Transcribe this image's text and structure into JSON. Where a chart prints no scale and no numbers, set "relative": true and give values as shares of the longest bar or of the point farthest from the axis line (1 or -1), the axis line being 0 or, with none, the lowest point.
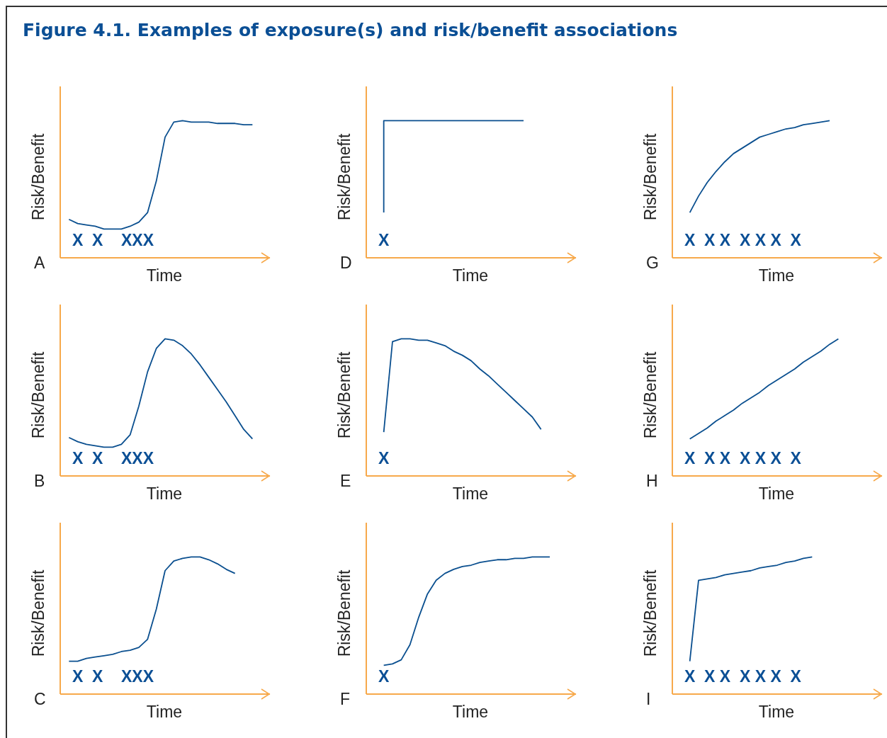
{
  "chart_data": [
    {
      "type": "other",
      "title": "Figure 4.1. Examples of exposure(s) and risk/benefit associations"
    },
    {
      "type": "line",
      "xlabel": "Time",
      "ylabel": "Risk/Benefit",
      "relative": true,
      "marker": "none",
      "annotations": [
        "A",
        "X  X    XXX"
      ],
      "categories": [
        null,
        null,
        null,
        null,
        null,
        null,
        null,
        null,
        null,
        null,
        null,
        null,
        null,
        null,
        null,
        null,
        null,
        null,
        null,
        null,
        null,
        null,
        null,
        null,
        null
      ],
      "series": [
        {
          "color": "#0a4f8f",
          "values": [
            null,
            0.28,
            0.25,
            0.24,
            0.23,
            0.21,
            0.21,
            0.21,
            0.23,
            0.26,
            0.33,
            0.56,
            0.88,
            0.99,
            1,
            0.99,
            0.99,
            0.99,
            0.98,
            0.98,
            0.98,
            0.97,
            0.97,
            null,
            null
          ]
        }
      ]
    },
    {
      "type": "line",
      "xlabel": "Time",
      "ylabel": "Risk/Benefit",
      "relative": true,
      "marker": "none",
      "annotations": [
        "D",
        "X"
      ],
      "categories": [
        null,
        null,
        null,
        null,
        null,
        null,
        null,
        null,
        null,
        null,
        null,
        null,
        null,
        null,
        null,
        null,
        null,
        null,
        null,
        null,
        null,
        null,
        null,
        null,
        null
      ],
      "series": [
        {
          "type": "step",
          "color": "#0a4f8f",
          "values": [
            null,
            null,
            0.33,
            1,
            1,
            1,
            1,
            1,
            1,
            1,
            1,
            1,
            1,
            1,
            1,
            1,
            1,
            1,
            1,
            null,
            null,
            null,
            null,
            null,
            null
          ]
        }
      ]
    },
    {
      "type": "line",
      "xlabel": "Time",
      "ylabel": "Risk/Benefit",
      "relative": true,
      "marker": "none",
      "annotations": [
        "G",
        "X  X X  X X X  X"
      ],
      "categories": [
        null,
        null,
        null,
        null,
        null,
        null,
        null,
        null,
        null,
        null,
        null,
        null,
        null,
        null,
        null,
        null,
        null,
        null,
        null,
        null,
        null,
        null,
        null,
        null,
        null
      ],
      "series": [
        {
          "color": "#0a4f8f",
          "values": [
            null,
            null,
            0.33,
            0.45,
            0.55,
            0.63,
            0.7,
            0.76,
            0.8,
            0.84,
            0.88,
            0.9,
            0.92,
            0.94,
            0.95,
            0.97,
            0.98,
            0.99,
            1,
            null,
            null,
            null,
            null,
            null,
            null
          ]
        }
      ]
    },
    {
      "type": "line",
      "xlabel": "Time",
      "ylabel": "Risk/Benefit",
      "relative": true,
      "marker": "none",
      "annotations": [
        "B",
        "X  X    XXX"
      ],
      "categories": [
        null,
        null,
        null,
        null,
        null,
        null,
        null,
        null,
        null,
        null,
        null,
        null,
        null,
        null,
        null,
        null,
        null,
        null,
        null,
        null,
        null,
        null,
        null,
        null,
        null
      ],
      "series": [
        {
          "color": "#0a4f8f",
          "values": [
            null,
            0.28,
            0.25,
            0.23,
            0.22,
            0.21,
            0.21,
            0.23,
            0.3,
            0.51,
            0.76,
            0.93,
            1,
            0.99,
            0.95,
            0.89,
            0.81,
            0.72,
            0.63,
            0.54,
            0.44,
            0.34,
            0.27,
            null,
            null
          ]
        }
      ]
    },
    {
      "type": "line",
      "xlabel": "Time",
      "ylabel": "Risk/Benefit",
      "relative": true,
      "marker": "none",
      "annotations": [
        "E",
        "X"
      ],
      "categories": [
        null,
        null,
        null,
        null,
        null,
        null,
        null,
        null,
        null,
        null,
        null,
        null,
        null,
        null,
        null,
        null,
        null,
        null,
        null,
        null,
        null,
        null,
        null,
        null,
        null
      ],
      "series": [
        {
          "color": "#0a4f8f",
          "values": [
            null,
            null,
            0.32,
            0.98,
            1,
            1,
            0.99,
            0.99,
            0.97,
            0.95,
            0.91,
            0.88,
            0.84,
            0.78,
            0.73,
            0.67,
            0.61,
            0.55,
            0.49,
            0.43,
            0.34,
            null,
            null,
            null,
            null
          ]
        }
      ]
    },
    {
      "type": "line",
      "xlabel": "Time",
      "ylabel": "Risk/Benefit",
      "relative": true,
      "marker": "none",
      "annotations": [
        "H",
        "X  X X  X X X  X"
      ],
      "categories": [
        null,
        null,
        null,
        null,
        null,
        null,
        null,
        null,
        null,
        null,
        null,
        null,
        null,
        null,
        null,
        null,
        null,
        null,
        null,
        null,
        null,
        null,
        null,
        null,
        null
      ],
      "series": [
        {
          "color": "#0a4f8f",
          "values": [
            null,
            null,
            0.27,
            0.31,
            0.35,
            0.4,
            0.44,
            0.48,
            0.53,
            0.57,
            0.61,
            0.66,
            0.7,
            0.74,
            0.78,
            0.83,
            0.87,
            0.91,
            0.96,
            1,
            null,
            null,
            null,
            null,
            null
          ]
        }
      ]
    },
    {
      "type": "line",
      "xlabel": "Time",
      "ylabel": "Risk/Benefit",
      "relative": true,
      "marker": "none",
      "annotations": [
        "C",
        "X  X    XXX"
      ],
      "categories": [
        null,
        null,
        null,
        null,
        null,
        null,
        null,
        null,
        null,
        null,
        null,
        null,
        null,
        null,
        null,
        null,
        null,
        null,
        null,
        null,
        null,
        null,
        null,
        null,
        null
      ],
      "series": [
        {
          "color": "#0a4f8f",
          "values": [
            null,
            0.24,
            0.24,
            0.26,
            0.27,
            0.28,
            0.29,
            0.31,
            0.32,
            0.34,
            0.4,
            0.62,
            0.9,
            0.97,
            0.99,
            1,
            1,
            0.98,
            0.95,
            0.91,
            0.88,
            null,
            null,
            null,
            null
          ]
        }
      ]
    },
    {
      "type": "line",
      "xlabel": "Time",
      "ylabel": "Risk/Benefit",
      "relative": true,
      "marker": "none",
      "annotations": [
        "F",
        "X"
      ],
      "categories": [
        null,
        null,
        null,
        null,
        null,
        null,
        null,
        null,
        null,
        null,
        null,
        null,
        null,
        null,
        null,
        null,
        null,
        null,
        null,
        null,
        null,
        null,
        null,
        null,
        null
      ],
      "series": [
        {
          "color": "#0a4f8f",
          "values": [
            null,
            null,
            0.21,
            0.22,
            0.25,
            0.36,
            0.56,
            0.73,
            0.83,
            0.88,
            0.91,
            0.93,
            0.94,
            0.96,
            0.97,
            0.98,
            0.98,
            0.99,
            0.99,
            1,
            1,
            1,
            null,
            null,
            null
          ]
        }
      ]
    },
    {
      "type": "line",
      "xlabel": "Time",
      "ylabel": "Risk/Benefit",
      "relative": true,
      "marker": "none",
      "annotations": [
        "I",
        "X  X X  X X X  X"
      ],
      "categories": [
        null,
        null,
        null,
        null,
        null,
        null,
        null,
        null,
        null,
        null,
        null,
        null,
        null,
        null,
        null,
        null,
        null,
        null,
        null,
        null,
        null,
        null,
        null,
        null,
        null
      ],
      "series": [
        {
          "color": "#0a4f8f",
          "values": [
            null,
            null,
            0.24,
            0.83,
            0.84,
            0.85,
            0.87,
            0.88,
            0.89,
            0.9,
            0.92,
            0.93,
            0.94,
            0.96,
            0.97,
            0.99,
            1,
            null,
            null,
            null,
            null,
            null,
            null,
            null,
            null
          ]
        }
      ]
    }
  ]
}
